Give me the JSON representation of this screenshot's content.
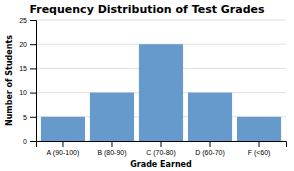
{
  "chart_data": {
    "type": "bar",
    "title": "Frequency Distribution of Test Grades",
    "categories": [
      "A (90-100)",
      "B (80-90)",
      "C (70-80)",
      "D (60-70)",
      "F (<60)"
    ],
    "values": [
      5,
      10,
      20,
      10,
      5
    ],
    "color": "#6699cc",
    "xlabel": "Grade Earned",
    "ylabel": "Number of Students",
    "ylim": [
      0,
      25
    ],
    "yticks": [
      0,
      5,
      10,
      15,
      20,
      25
    ],
    "grid": true
  }
}
